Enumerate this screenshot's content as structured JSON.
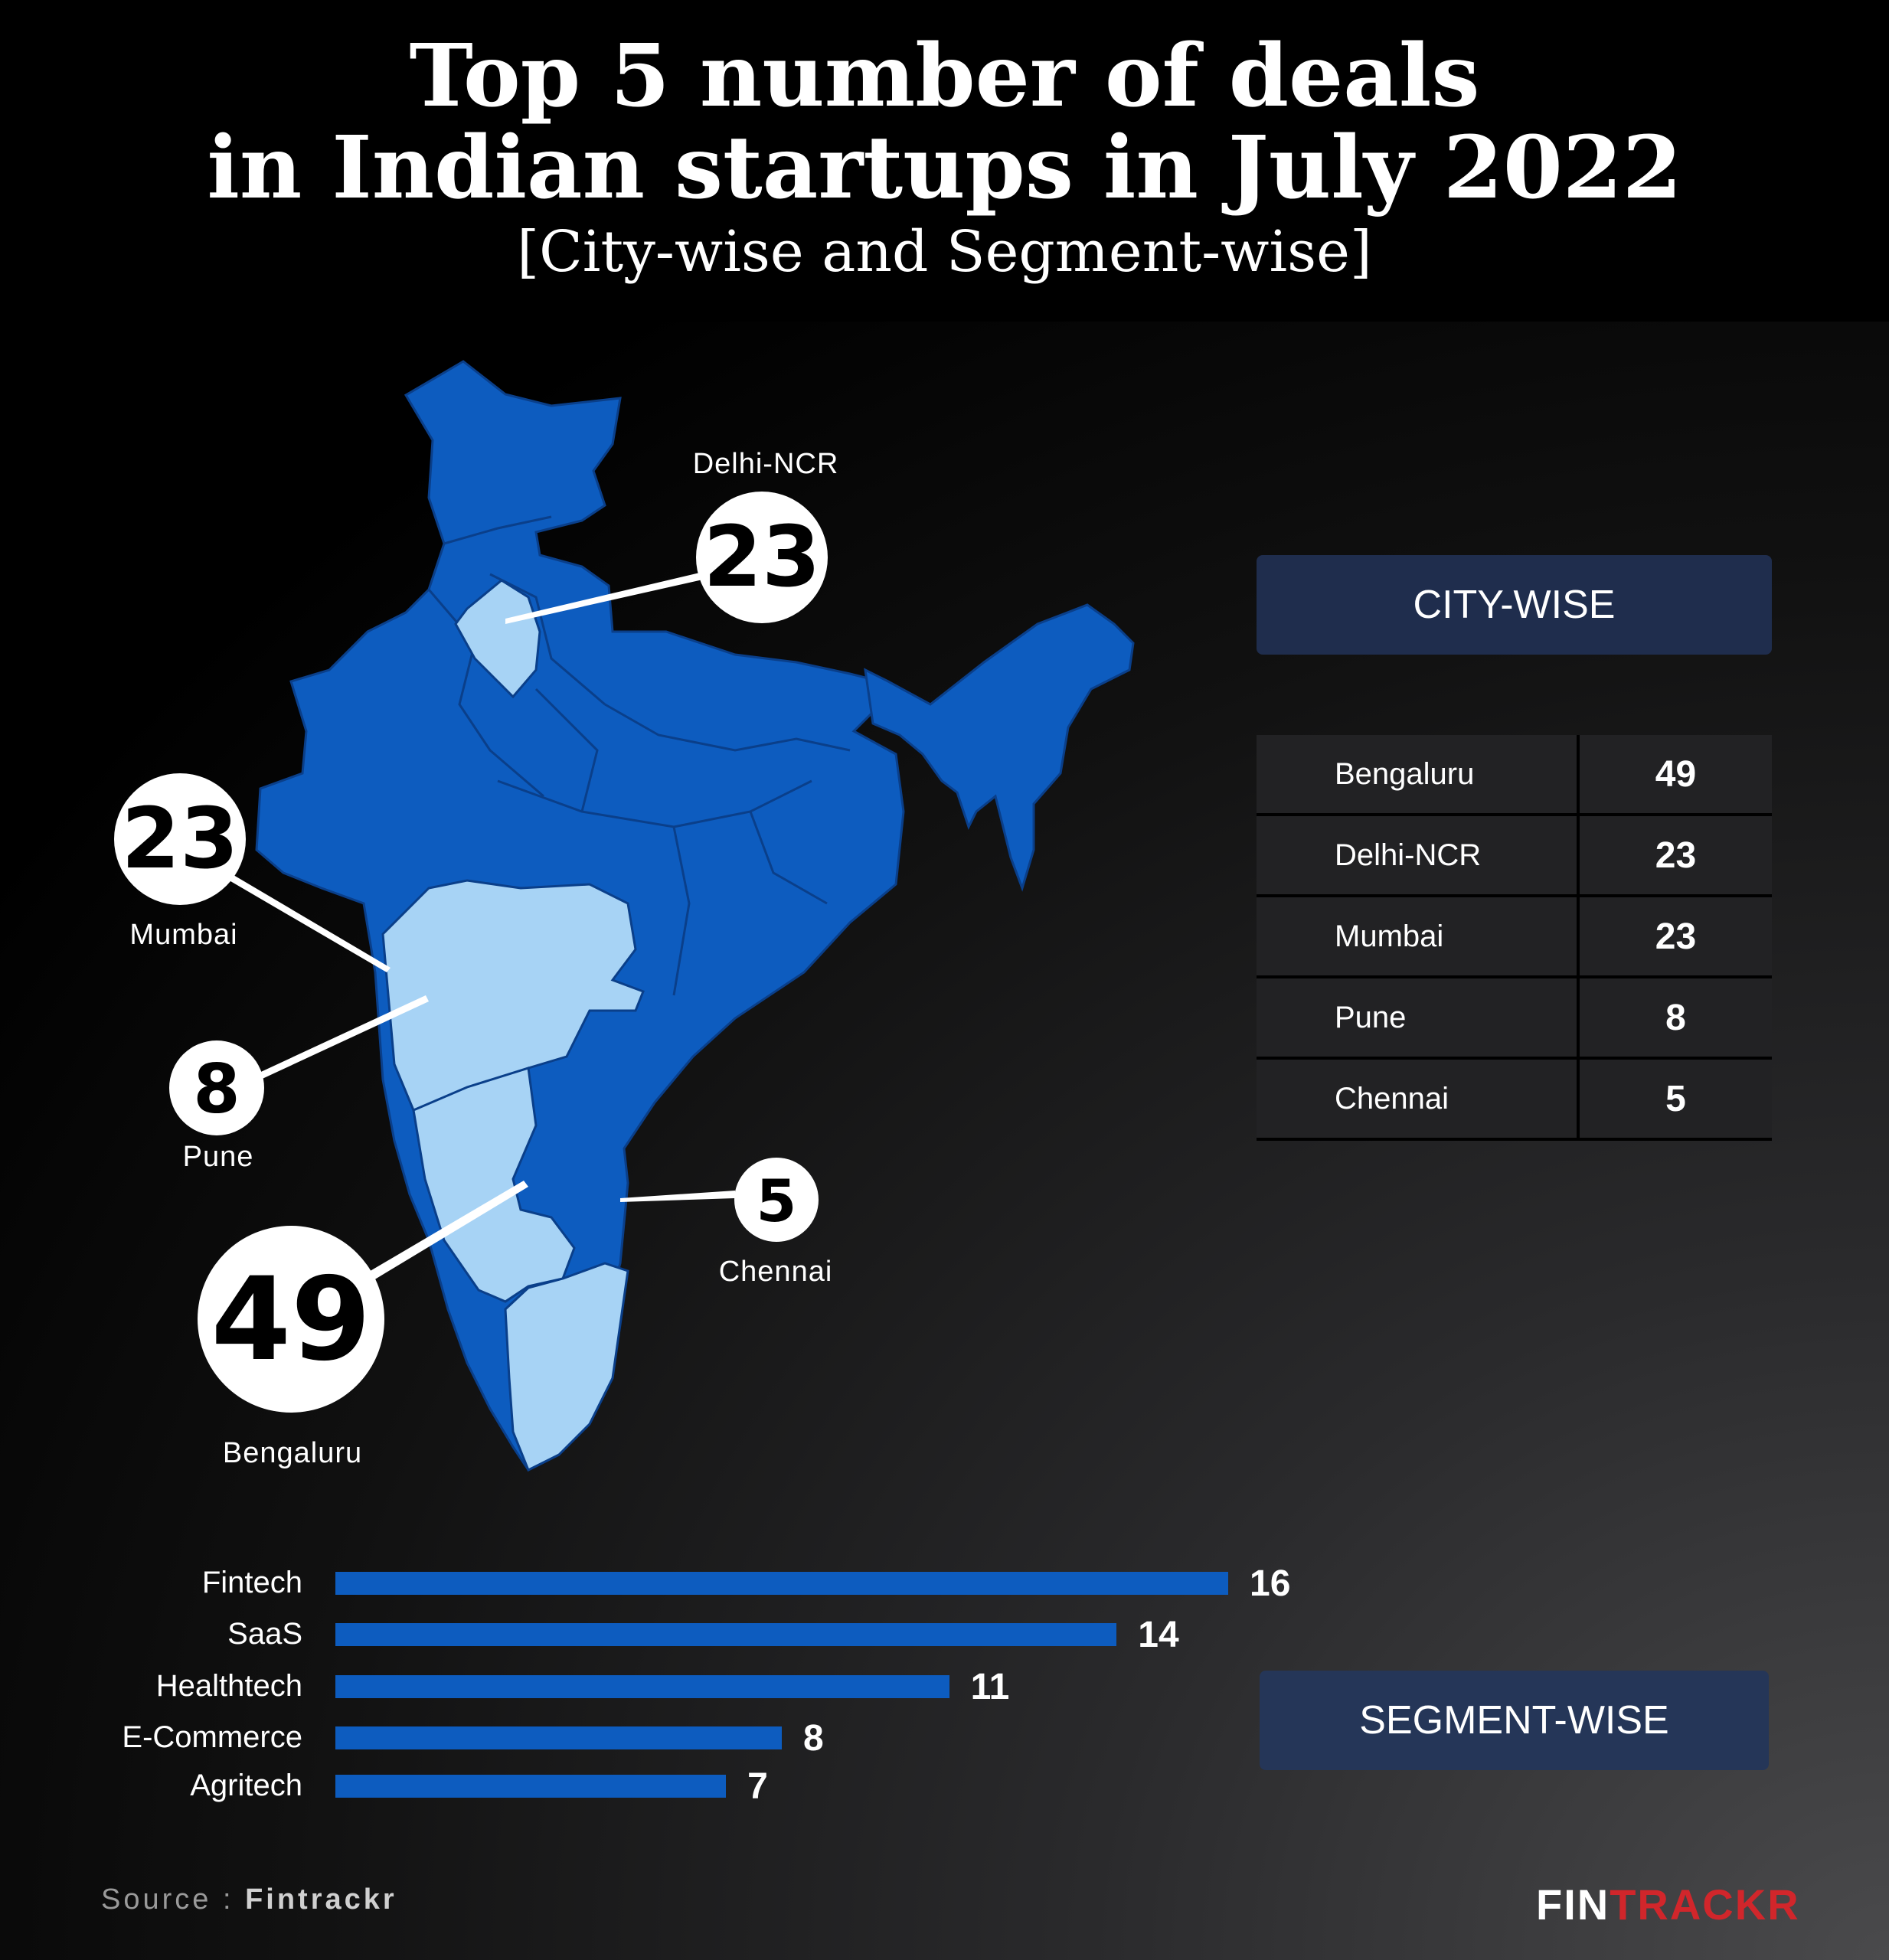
{
  "header": {
    "title_line1": "Top 5 number of deals",
    "title_line2": "in Indian startups in July 2022",
    "subtitle": "[City-wise and Segment-wise]"
  },
  "colors": {
    "map_base": "#0d5cbf",
    "map_highlight": "#a7d3f5",
    "box": "#1f2d4d",
    "bar": "#0d5cbf",
    "logo_accent": "#d1262b"
  },
  "map": {
    "callouts": [
      {
        "city": "Delhi-NCR",
        "value": "23"
      },
      {
        "city": "Mumbai",
        "value": "23"
      },
      {
        "city": "Pune",
        "value": "8"
      },
      {
        "city": "Chennai",
        "value": "5"
      },
      {
        "city": "Bengaluru",
        "value": "49"
      }
    ]
  },
  "city_box_title": "CITY-WISE",
  "segment_box_title": "SEGMENT-WISE",
  "chart_data": [
    {
      "type": "table",
      "title": "CITY-WISE",
      "rows": [
        {
          "city": "Bengaluru",
          "deals": 49
        },
        {
          "city": "Delhi-NCR",
          "deals": 23
        },
        {
          "city": "Mumbai",
          "deals": 23
        },
        {
          "city": "Pune",
          "deals": 8
        },
        {
          "city": "Chennai",
          "deals": 5
        }
      ]
    },
    {
      "type": "bar",
      "orientation": "horizontal",
      "title": "SEGMENT-WISE",
      "categories": [
        "Fintech",
        "SaaS",
        "Healthtech",
        "E-Commerce",
        "Agritech"
      ],
      "values": [
        16,
        14,
        11,
        8,
        7
      ],
      "xlim": [
        0,
        16
      ],
      "grid": false
    }
  ],
  "footer": {
    "source_prefix": "Source : ",
    "source_name": "Fintrackr",
    "logo_part1": "FIN",
    "logo_part2": "TRACKR"
  }
}
